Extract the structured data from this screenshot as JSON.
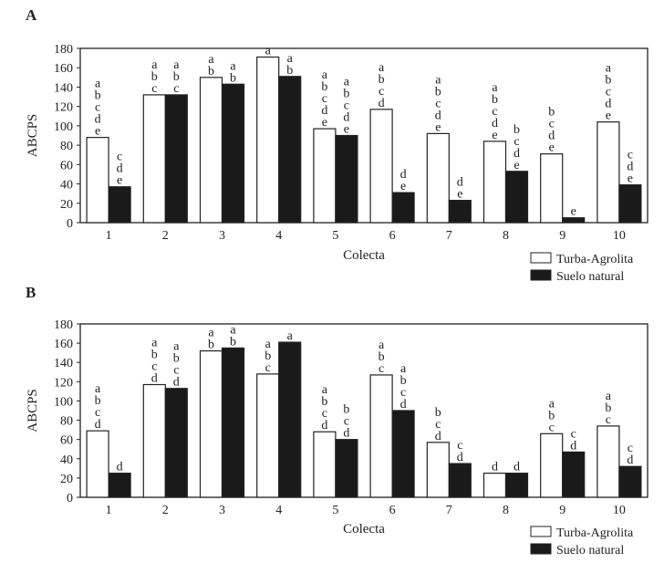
{
  "chart_data": [
    {
      "panel_label": "A",
      "type": "bar",
      "xlabel": "Colecta",
      "ylabel": "ABCPS",
      "ylim": [
        0,
        180
      ],
      "yticks": [
        0,
        20,
        40,
        60,
        80,
        100,
        120,
        140,
        160,
        180
      ],
      "categories": [
        "1",
        "2",
        "3",
        "4",
        "5",
        "6",
        "7",
        "8",
        "9",
        "10"
      ],
      "legend_position": "bottom-right",
      "series": [
        {
          "name": "Turba-Agrolita",
          "color": "#ffffff",
          "values": [
            88,
            132,
            150,
            171,
            97,
            117,
            92,
            84,
            71,
            104
          ],
          "letters": [
            "abcde",
            "abc",
            "ab",
            "a",
            "abcde",
            "abcd",
            "abcde",
            "abcde",
            "bcde",
            "abcde"
          ]
        },
        {
          "name": "Suelo natural",
          "color": "#1a1a1a",
          "values": [
            37,
            132,
            143,
            151,
            90,
            31,
            23,
            53,
            5,
            39
          ],
          "letters": [
            "cde",
            "abc",
            "ab",
            "ab",
            "abcde",
            "de",
            "de",
            "bcde",
            "e",
            "cde"
          ]
        }
      ]
    },
    {
      "panel_label": "B",
      "type": "bar",
      "xlabel": "Colecta",
      "ylabel": "ABCPS",
      "ylim": [
        0,
        180
      ],
      "yticks": [
        0,
        20,
        40,
        60,
        80,
        100,
        120,
        140,
        160,
        180
      ],
      "categories": [
        "1",
        "2",
        "3",
        "4",
        "5",
        "6",
        "7",
        "8",
        "9",
        "10"
      ],
      "legend_position": "bottom-right",
      "series": [
        {
          "name": "Turba-Agrolita",
          "color": "#ffffff",
          "values": [
            69,
            117,
            152,
            128,
            68,
            127,
            57,
            25,
            66,
            74
          ],
          "letters": [
            "abcd",
            "abcd",
            "ab",
            "abc",
            "abcd",
            "abc",
            "bcd",
            "d",
            "abc",
            "abc"
          ]
        },
        {
          "name": "Suelo natural",
          "color": "#1a1a1a",
          "values": [
            25,
            113,
            155,
            161,
            60,
            90,
            35,
            25,
            47,
            32
          ],
          "letters": [
            "d",
            "abcd",
            "ab",
            "a",
            "bcd",
            "abcd",
            "cd",
            "d",
            "cd",
            "cd"
          ]
        }
      ]
    }
  ]
}
